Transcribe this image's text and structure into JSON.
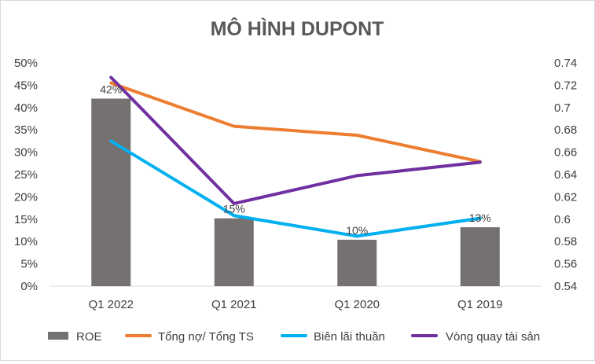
{
  "chart_data": {
    "type": "bar",
    "title": "MÔ HÌNH DUPONT",
    "categories": [
      "Q1 2022",
      "Q1 2021",
      "Q1 2020",
      "Q1 2019"
    ],
    "y_left": {
      "min": 0,
      "max": 0.5,
      "step": 0.05,
      "ticks": [
        "0%",
        "5%",
        "10%",
        "15%",
        "20%",
        "25%",
        "30%",
        "35%",
        "40%",
        "45%",
        "50%"
      ]
    },
    "y_right": {
      "min": 0.54,
      "max": 0.74,
      "step": 0.02,
      "ticks": [
        "0.54",
        "0.56",
        "0.58",
        "0.6",
        "0.62",
        "0.64",
        "0.66",
        "0.68",
        "0.7",
        "0.72",
        "0.74"
      ]
    },
    "series": [
      {
        "name": "ROE",
        "type": "bar",
        "axis": "left",
        "color": "#767171",
        "values": [
          0.42,
          0.152,
          0.104,
          0.132
        ],
        "labels": [
          "42%",
          "15%",
          "10%",
          "13%"
        ]
      },
      {
        "name": "Tổng nợ/ Tổng TS",
        "type": "line",
        "axis": "left",
        "color": "#ED7D31",
        "values": [
          0.455,
          0.358,
          0.338,
          0.279
        ]
      },
      {
        "name": "Biên lãi thuần",
        "type": "line",
        "axis": "left",
        "color": "#00B0F0",
        "values": [
          0.325,
          0.158,
          0.112,
          0.152
        ]
      },
      {
        "name": "Vòng quay tài sản",
        "type": "line",
        "axis": "right",
        "color": "#7030A0",
        "values": [
          0.727,
          0.614,
          0.639,
          0.651
        ]
      }
    ],
    "grid": false,
    "legend": "bottom"
  }
}
